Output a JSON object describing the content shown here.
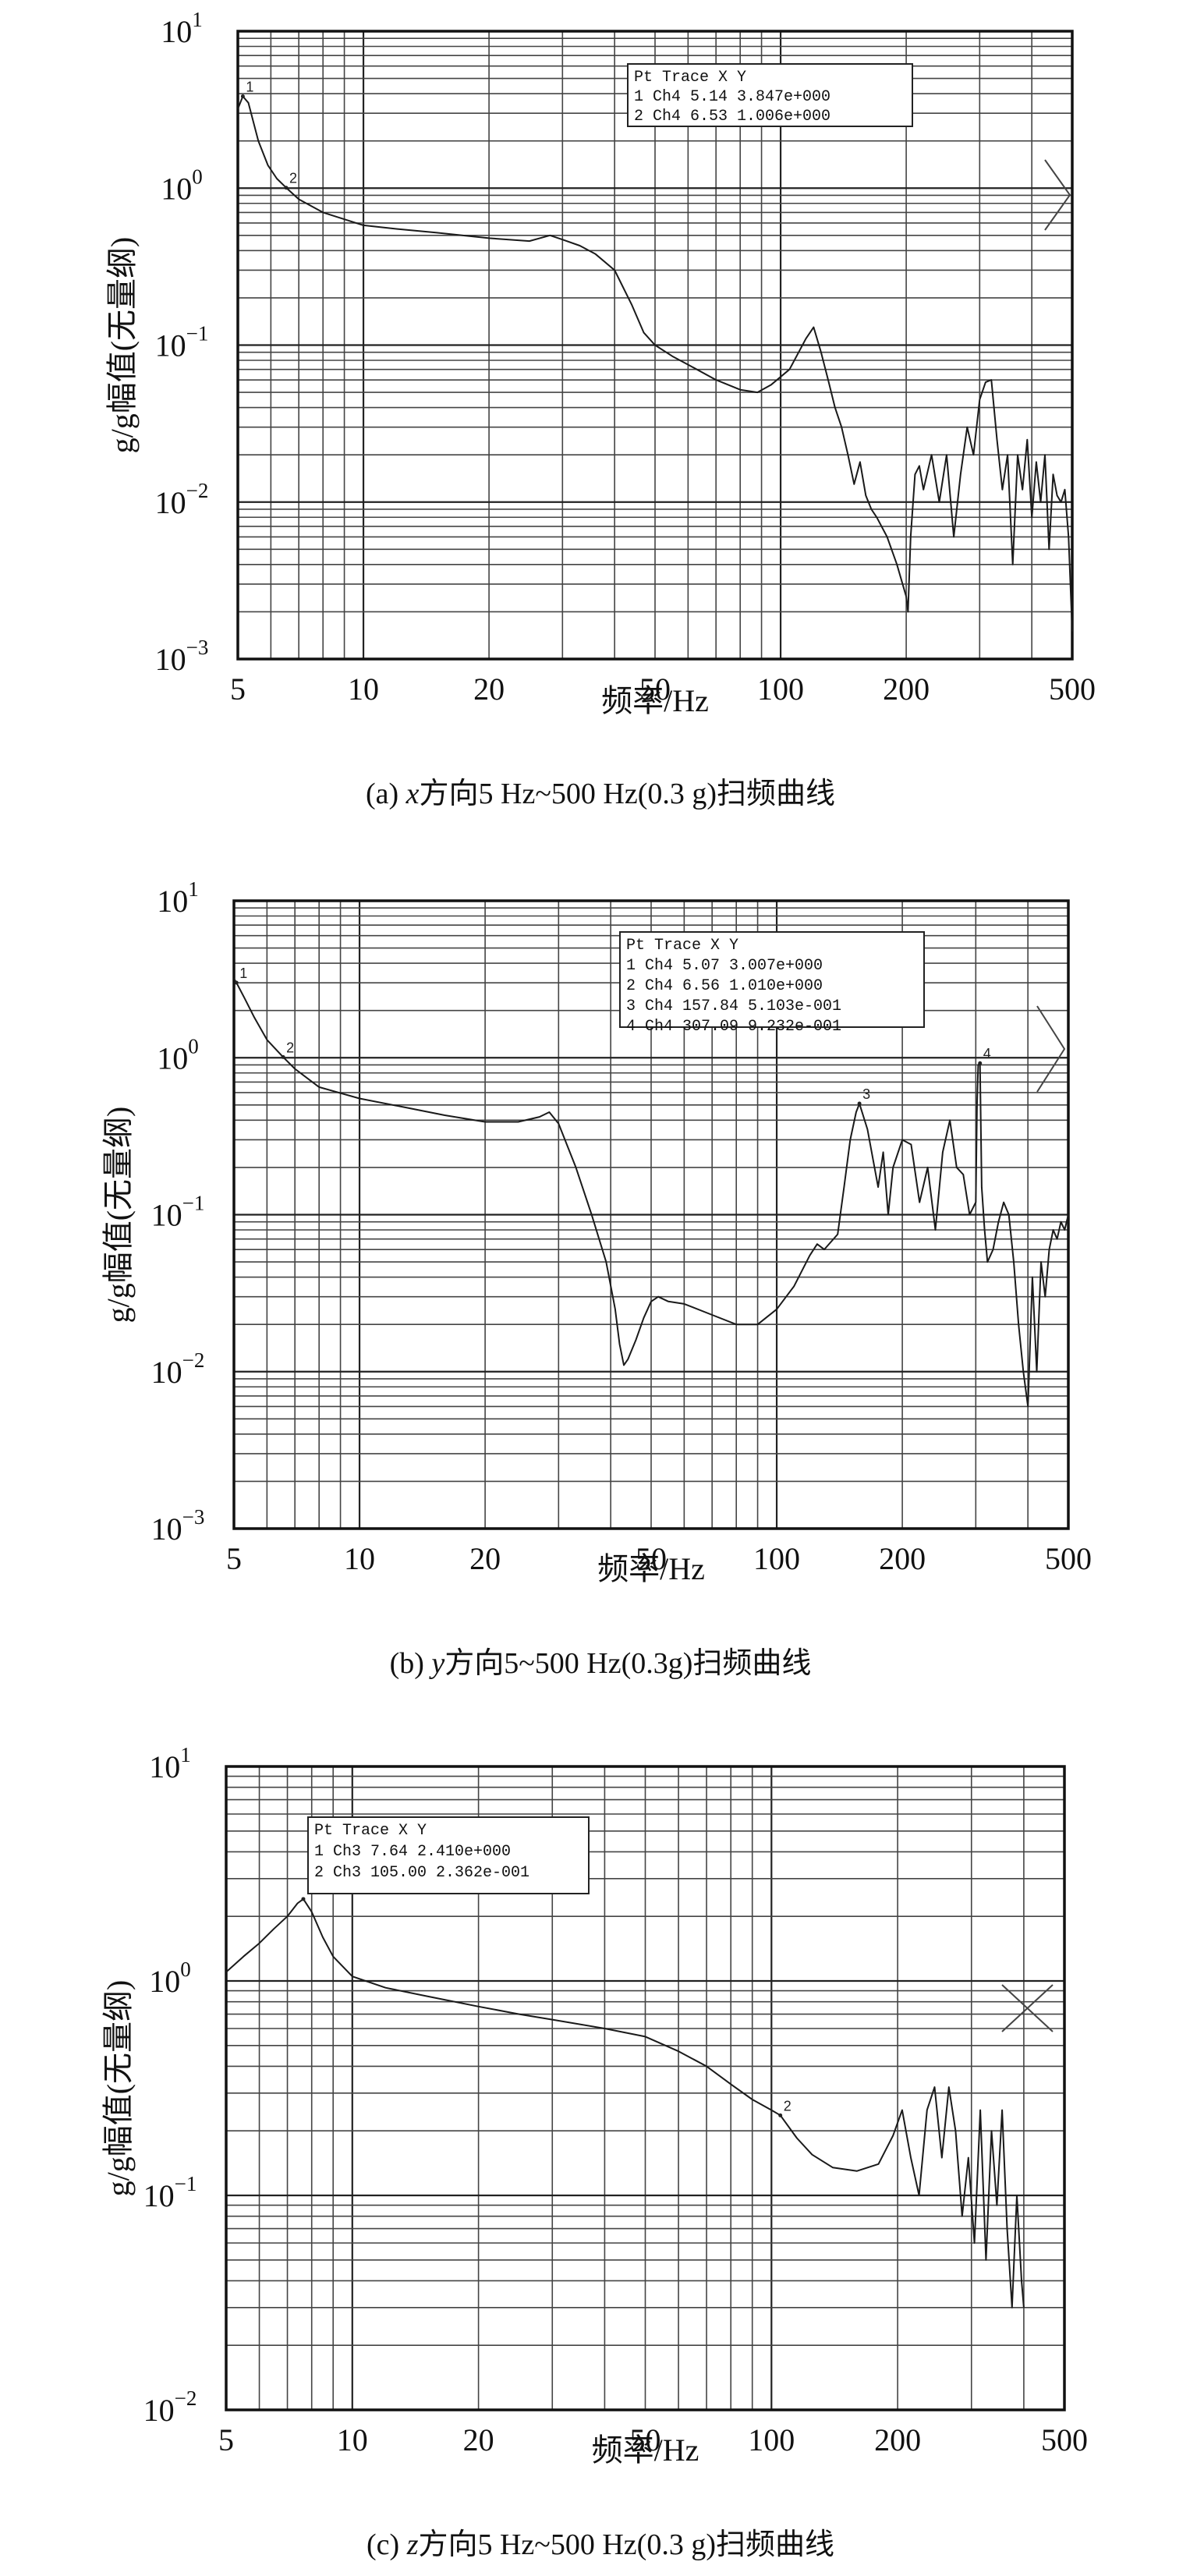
{
  "chart_data": [
    {
      "type": "line",
      "xscale": "log",
      "yscale": "log",
      "xlim": [
        5,
        500
      ],
      "ylim": [
        0.001,
        10
      ],
      "xticks": [
        "5",
        "10",
        "20",
        "50",
        "100",
        "200",
        "500"
      ],
      "yticks": [
        {
          "base": "10",
          "exp": "1"
        },
        {
          "base": "10",
          "exp": "0"
        },
        {
          "base": "10",
          "exp": "−1"
        },
        {
          "base": "10",
          "exp": "−2"
        },
        {
          "base": "10",
          "exp": "−3"
        }
      ],
      "xlabel": "频率/Hz",
      "ylabel": "g/g幅值(无量纲)",
      "caption": {
        "label": "(a) ",
        "axis": "x",
        "text": "方向5 Hz~500 Hz(0.3 g)扫频曲线"
      },
      "grid": true,
      "legend": {
        "position": "top-right",
        "header": "Pt Trace    X       Y",
        "rows": [
          " 1 Ch4     5.14 3.847e+000",
          " 2 Ch4     6.53 1.006e+000"
        ]
      },
      "markers": [
        {
          "label": "1",
          "x": 5.14,
          "y": 3.847
        },
        {
          "label": "2",
          "x": 6.53,
          "y": 1.006
        }
      ],
      "series": [
        {
          "x": [
            5.0,
            5.14,
            5.3,
            5.6,
            5.9,
            6.2,
            6.53,
            7.0,
            8.0,
            10.0,
            12.0,
            15.0,
            20.0,
            25.0,
            28.0,
            30.0,
            33.0,
            36.0,
            40.0,
            44.0,
            47.0,
            50.0,
            55.0,
            60.0,
            70.0,
            80.0,
            88.0,
            95.0,
            105.0,
            115.0,
            120.0,
            125.0,
            130.0,
            135.0,
            140.0,
            145.0,
            150.0,
            155.0,
            160.0,
            165.0,
            170.0,
            180.0,
            190.0,
            200.0,
            202.0,
            205.0,
            210.0,
            215.0,
            220.0,
            230.0,
            240.0,
            250.0,
            260.0,
            270.0,
            280.0,
            290.0,
            300.0,
            310.0,
            320.0,
            330.0,
            340.0,
            350.0,
            360.0,
            370.0,
            380.0,
            390.0,
            400.0,
            410.0,
            420.0,
            430.0,
            440.0,
            450.0,
            460.0,
            470.0,
            480.0,
            490.0,
            500.0
          ],
          "y": [
            3.2,
            3.847,
            3.5,
            2.0,
            1.4,
            1.15,
            1.006,
            0.85,
            0.7,
            0.58,
            0.55,
            0.52,
            0.48,
            0.46,
            0.5,
            0.47,
            0.43,
            0.38,
            0.3,
            0.18,
            0.12,
            0.1,
            0.085,
            0.075,
            0.06,
            0.052,
            0.05,
            0.056,
            0.07,
            0.11,
            0.13,
            0.09,
            0.06,
            0.04,
            0.03,
            0.02,
            0.013,
            0.018,
            0.011,
            0.009,
            0.008,
            0.006,
            0.004,
            0.0025,
            0.002,
            0.006,
            0.015,
            0.017,
            0.012,
            0.02,
            0.01,
            0.02,
            0.006,
            0.015,
            0.03,
            0.02,
            0.045,
            0.058,
            0.06,
            0.025,
            0.012,
            0.02,
            0.004,
            0.02,
            0.012,
            0.025,
            0.008,
            0.018,
            0.01,
            0.02,
            0.005,
            0.015,
            0.011,
            0.01,
            0.012,
            0.006,
            0.0015
          ]
        }
      ]
    },
    {
      "type": "line",
      "xscale": "log",
      "yscale": "log",
      "xlim": [
        5,
        500
      ],
      "ylim": [
        0.001,
        10
      ],
      "xticks": [
        "5",
        "10",
        "20",
        "50",
        "100",
        "200",
        "500"
      ],
      "yticks": [
        {
          "base": "10",
          "exp": "1"
        },
        {
          "base": "10",
          "exp": "0"
        },
        {
          "base": "10",
          "exp": "−1"
        },
        {
          "base": "10",
          "exp": "−2"
        },
        {
          "base": "10",
          "exp": "−3"
        }
      ],
      "xlabel": "频率/Hz",
      "ylabel": "g/g幅值(无量纲)",
      "caption": {
        "label": "(b) ",
        "axis": "y",
        "text": "方向5~500 Hz(0.3g)扫频曲线"
      },
      "grid": true,
      "legend": {
        "position": "top-right",
        "header": "Pt Trace      X       Y",
        "rows": [
          " 1 Ch4       5.07 3.007e+000",
          " 2 Ch4       6.56 1.010e+000",
          " 3 Ch4     157.84 5.103e-001",
          " 4 Ch4     307.09 9.232e-001"
        ]
      },
      "markers": [
        {
          "label": "1",
          "x": 5.07,
          "y": 3.007
        },
        {
          "label": "2",
          "x": 6.56,
          "y": 1.01
        },
        {
          "label": "3",
          "x": 157.84,
          "y": 0.5103
        },
        {
          "label": "4",
          "x": 307.09,
          "y": 0.9232
        }
      ],
      "series": [
        {
          "x": [
            5.0,
            5.07,
            5.3,
            5.6,
            6.0,
            6.56,
            7.0,
            8.0,
            10.0,
            13.0,
            16.0,
            20.0,
            24.0,
            27.0,
            28.5,
            30.0,
            33.0,
            36.0,
            39.0,
            41.0,
            42.0,
            43.0,
            44.0,
            46.0,
            48.0,
            50.0,
            52.0,
            55.0,
            60.0,
            70.0,
            80.0,
            90.0,
            100.0,
            110.0,
            120.0,
            125.0,
            130.0,
            140.0,
            145.0,
            150.0,
            155.0,
            157.84,
            165.0,
            175.0,
            180.0,
            185.0,
            190.0,
            200.0,
            210.0,
            220.0,
            230.0,
            240.0,
            250.0,
            260.0,
            270.0,
            280.0,
            290.0,
            300.0,
            302.0,
            304.0,
            307.09,
            310.0,
            315.0,
            320.0,
            330.0,
            340.0,
            350.0,
            360.0,
            370.0,
            380.0,
            390.0,
            400.0,
            410.0,
            420.0,
            430.0,
            440.0,
            450.0,
            460.0,
            470.0,
            480.0,
            490.0,
            500.0
          ],
          "y": [
            3.2,
            3.007,
            2.4,
            1.8,
            1.3,
            1.01,
            0.85,
            0.65,
            0.55,
            0.48,
            0.43,
            0.39,
            0.39,
            0.42,
            0.45,
            0.38,
            0.2,
            0.1,
            0.05,
            0.025,
            0.015,
            0.011,
            0.012,
            0.016,
            0.022,
            0.028,
            0.03,
            0.028,
            0.027,
            0.023,
            0.02,
            0.02,
            0.025,
            0.035,
            0.055,
            0.065,
            0.06,
            0.075,
            0.15,
            0.3,
            0.45,
            0.5103,
            0.35,
            0.15,
            0.25,
            0.1,
            0.2,
            0.3,
            0.28,
            0.12,
            0.2,
            0.08,
            0.25,
            0.4,
            0.2,
            0.18,
            0.1,
            0.12,
            0.5,
            0.9,
            0.9232,
            0.15,
            0.08,
            0.05,
            0.06,
            0.09,
            0.12,
            0.1,
            0.05,
            0.02,
            0.01,
            0.006,
            0.04,
            0.01,
            0.05,
            0.03,
            0.06,
            0.08,
            0.07,
            0.09,
            0.08,
            0.1
          ]
        }
      ]
    },
    {
      "type": "line",
      "xscale": "log",
      "yscale": "log",
      "xlim": [
        5,
        500
      ],
      "ylim": [
        0.01,
        10
      ],
      "xticks": [
        "5",
        "10",
        "20",
        "50",
        "100",
        "200",
        "500"
      ],
      "yticks": [
        {
          "base": "10",
          "exp": "1"
        },
        {
          "base": "10",
          "exp": "0"
        },
        {
          "base": "10",
          "exp": "−1"
        },
        {
          "base": "10",
          "exp": "−2"
        }
      ],
      "xlabel": "频率/Hz",
      "ylabel": "g/g幅值(无量纲)",
      "caption": {
        "label": "(c) ",
        "axis": "z",
        "text": "方向5 Hz~500 Hz(0.3 g)扫频曲线"
      },
      "grid": true,
      "legend": {
        "position": "top-left",
        "header": "Pt Trace     X       Y",
        "rows": [
          " 1 Ch3     7.64 2.410e+000",
          " 2 Ch3   105.00 2.362e-001"
        ]
      },
      "markers": [
        {
          "label": "1",
          "x": 7.64,
          "y": 2.41
        },
        {
          "label": "2",
          "x": 105.0,
          "y": 0.2362
        }
      ],
      "series": [
        {
          "x": [
            5.0,
            5.5,
            6.0,
            6.5,
            7.0,
            7.4,
            7.64,
            8.0,
            8.5,
            9.0,
            10.0,
            12.0,
            15.0,
            20.0,
            25.0,
            30.0,
            40.0,
            50.0,
            60.0,
            70.0,
            80.0,
            90.0,
            100.0,
            105.0,
            115.0,
            125.0,
            140.0,
            160.0,
            180.0,
            195.0,
            205.0,
            215.0,
            225.0,
            235.0,
            245.0,
            255.0,
            265.0,
            275.0,
            285.0,
            295.0,
            305.0,
            315.0,
            325.0,
            335.0,
            345.0,
            355.0,
            365.0,
            375.0,
            385.0,
            395.0,
            400.0
          ],
          "y": [
            1.1,
            1.3,
            1.5,
            1.75,
            2.0,
            2.3,
            2.41,
            2.1,
            1.6,
            1.3,
            1.05,
            0.93,
            0.85,
            0.76,
            0.7,
            0.66,
            0.6,
            0.55,
            0.47,
            0.4,
            0.33,
            0.28,
            0.25,
            0.2362,
            0.185,
            0.155,
            0.135,
            0.13,
            0.14,
            0.19,
            0.25,
            0.15,
            0.1,
            0.25,
            0.32,
            0.15,
            0.32,
            0.2,
            0.08,
            0.15,
            0.06,
            0.25,
            0.05,
            0.2,
            0.09,
            0.25,
            0.07,
            0.03,
            0.1,
            0.04,
            0.03
          ]
        }
      ]
    }
  ]
}
